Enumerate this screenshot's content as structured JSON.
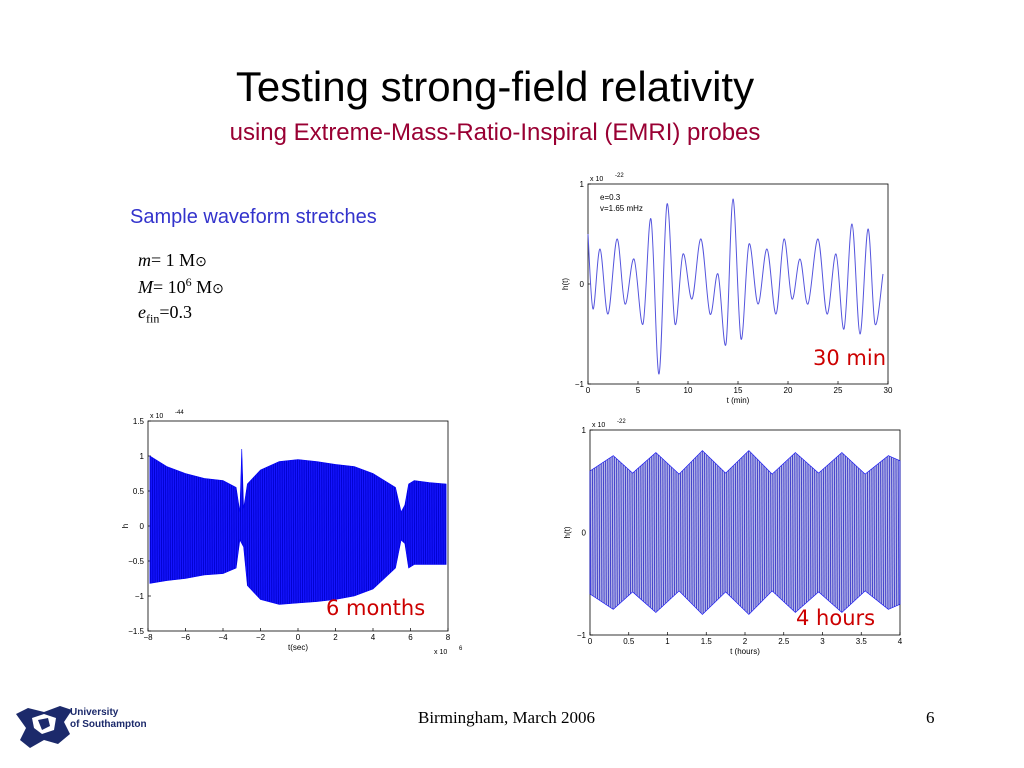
{
  "slide": {
    "title": "Testing strong-field relativity",
    "subtitle": "using Extreme-Mass-Ratio-Inspiral (EMRI) probes",
    "heading": "Sample waveform stretches",
    "params": {
      "m_symbol": "m",
      "m_value": "= 1 M",
      "M_symbol": "M",
      "M_value": "= 10",
      "M_exp": "6",
      "M_unit": " M",
      "sun_symbol": "⊙",
      "e_symbol": "e",
      "e_sub": "fin",
      "e_value": "=0.3"
    },
    "footer": "Birmingham, March 2006",
    "page_number": "6",
    "logo_line1": "University",
    "logo_line2": "of Southampton",
    "colors": {
      "title": "#000000",
      "subtitle": "#990033",
      "heading": "#3333cc",
      "caption": "#cc0000",
      "trace": "#0000ff"
    }
  },
  "chart_data": [
    {
      "id": "panel_30min",
      "type": "line",
      "title": "",
      "caption": "30 min",
      "xlabel": "t (min)",
      "ylabel": "h(t)",
      "scale_label": "x 10",
      "scale_exp": "-22",
      "annotation_line1": "e=0.3",
      "annotation_line2": "v=1.65 mHz",
      "xlim": [
        0,
        30
      ],
      "ylim": [
        -1,
        1
      ],
      "xticks": [
        "0",
        "5",
        "10",
        "15",
        "20",
        "25",
        "30"
      ],
      "yticks": [
        "−1",
        "0",
        "1"
      ],
      "series": [
        {
          "x": [
            0,
            0.5,
            1.2,
            2.0,
            2.9,
            3.7,
            4.6,
            5.5,
            6.3,
            7.1,
            7.9,
            8.7,
            9.5,
            10.4,
            11.3,
            12.2,
            13.0,
            13.8,
            14.5,
            15.3,
            16.1,
            17.0,
            17.9,
            18.8,
            19.6,
            20.4,
            21.2,
            22.0,
            23.0,
            23.9,
            24.8,
            25.6,
            26.4,
            27.2,
            28.0,
            28.7,
            29.5
          ],
          "y": [
            0.5,
            -0.25,
            0.35,
            -0.3,
            0.45,
            -0.2,
            0.25,
            -0.4,
            0.65,
            -0.9,
            0.8,
            -0.4,
            0.3,
            -0.15,
            0.45,
            -0.3,
            0.1,
            -0.6,
            0.85,
            -0.55,
            0.4,
            -0.2,
            0.35,
            -0.3,
            0.45,
            -0.15,
            0.25,
            -0.2,
            0.45,
            -0.3,
            0.3,
            -0.45,
            0.6,
            -0.5,
            0.55,
            -0.4,
            0.1
          ]
        }
      ]
    },
    {
      "id": "panel_6months",
      "type": "area",
      "title": "",
      "caption": "6 months",
      "xlabel": "t(sec)",
      "ylabel": "h",
      "scale_label": "x 10",
      "scale_exp": "-44",
      "x_scale_label": "x 10",
      "x_scale_exp": "6",
      "xlim": [
        -8,
        8
      ],
      "ylim": [
        -1.5,
        1.5
      ],
      "xticks": [
        "−8",
        "−6",
        "−4",
        "−2",
        "0",
        "2",
        "4",
        "6",
        "8"
      ],
      "yticks": [
        "−1.5",
        "−1",
        "−0.5",
        "0",
        "0.5",
        "1",
        "1.5"
      ],
      "series": [
        {
          "name_hidden": true,
          "x": [
            -7.9,
            -7.0,
            -6.0,
            -5.0,
            -4.0,
            -3.3,
            -3.1,
            -3.0,
            -2.9,
            -2.7,
            -2.0,
            -1.0,
            0.0,
            1.0,
            2.0,
            3.0,
            4.0,
            5.2,
            5.5,
            5.7,
            5.9,
            6.2,
            7.0,
            7.9
          ],
          "y_upper": [
            1.0,
            0.85,
            0.75,
            0.68,
            0.65,
            0.55,
            0.2,
            1.1,
            0.25,
            0.6,
            0.8,
            0.92,
            0.95,
            0.92,
            0.88,
            0.85,
            0.75,
            0.55,
            0.2,
            0.3,
            0.6,
            0.65,
            0.62,
            0.6
          ],
          "y_lower": [
            -0.82,
            -0.78,
            -0.75,
            -0.7,
            -0.68,
            -0.6,
            -0.2,
            -0.25,
            -0.3,
            -0.85,
            -1.05,
            -1.12,
            -1.1,
            -1.08,
            -1.05,
            -1.0,
            -0.9,
            -0.6,
            -0.2,
            -0.25,
            -0.6,
            -0.55,
            -0.55,
            -0.55
          ]
        }
      ]
    },
    {
      "id": "panel_4hours",
      "type": "area",
      "title": "",
      "caption": "4 hours",
      "xlabel": "t (hours)",
      "ylabel": "h(t)",
      "scale_label": "x 10",
      "scale_exp": "-22",
      "xlim": [
        0,
        4
      ],
      "ylim": [
        -1,
        1
      ],
      "xticks": [
        "0",
        "0.5",
        "1",
        "1.5",
        "2",
        "2.5",
        "3",
        "3.5",
        "4"
      ],
      "yticks": [
        "−1",
        "0",
        "1"
      ],
      "series": [
        {
          "x": [
            0,
            0.3,
            0.55,
            0.85,
            1.15,
            1.45,
            1.75,
            2.05,
            2.35,
            2.65,
            2.95,
            3.25,
            3.55,
            3.85,
            4.0
          ],
          "y_upper": [
            0.6,
            0.75,
            0.58,
            0.78,
            0.57,
            0.8,
            0.58,
            0.8,
            0.57,
            0.78,
            0.58,
            0.78,
            0.57,
            0.75,
            0.7
          ],
          "y_lower": [
            -0.6,
            -0.75,
            -0.58,
            -0.78,
            -0.57,
            -0.8,
            -0.58,
            -0.8,
            -0.57,
            -0.78,
            -0.58,
            -0.78,
            -0.57,
            -0.75,
            -0.7
          ]
        }
      ]
    }
  ]
}
